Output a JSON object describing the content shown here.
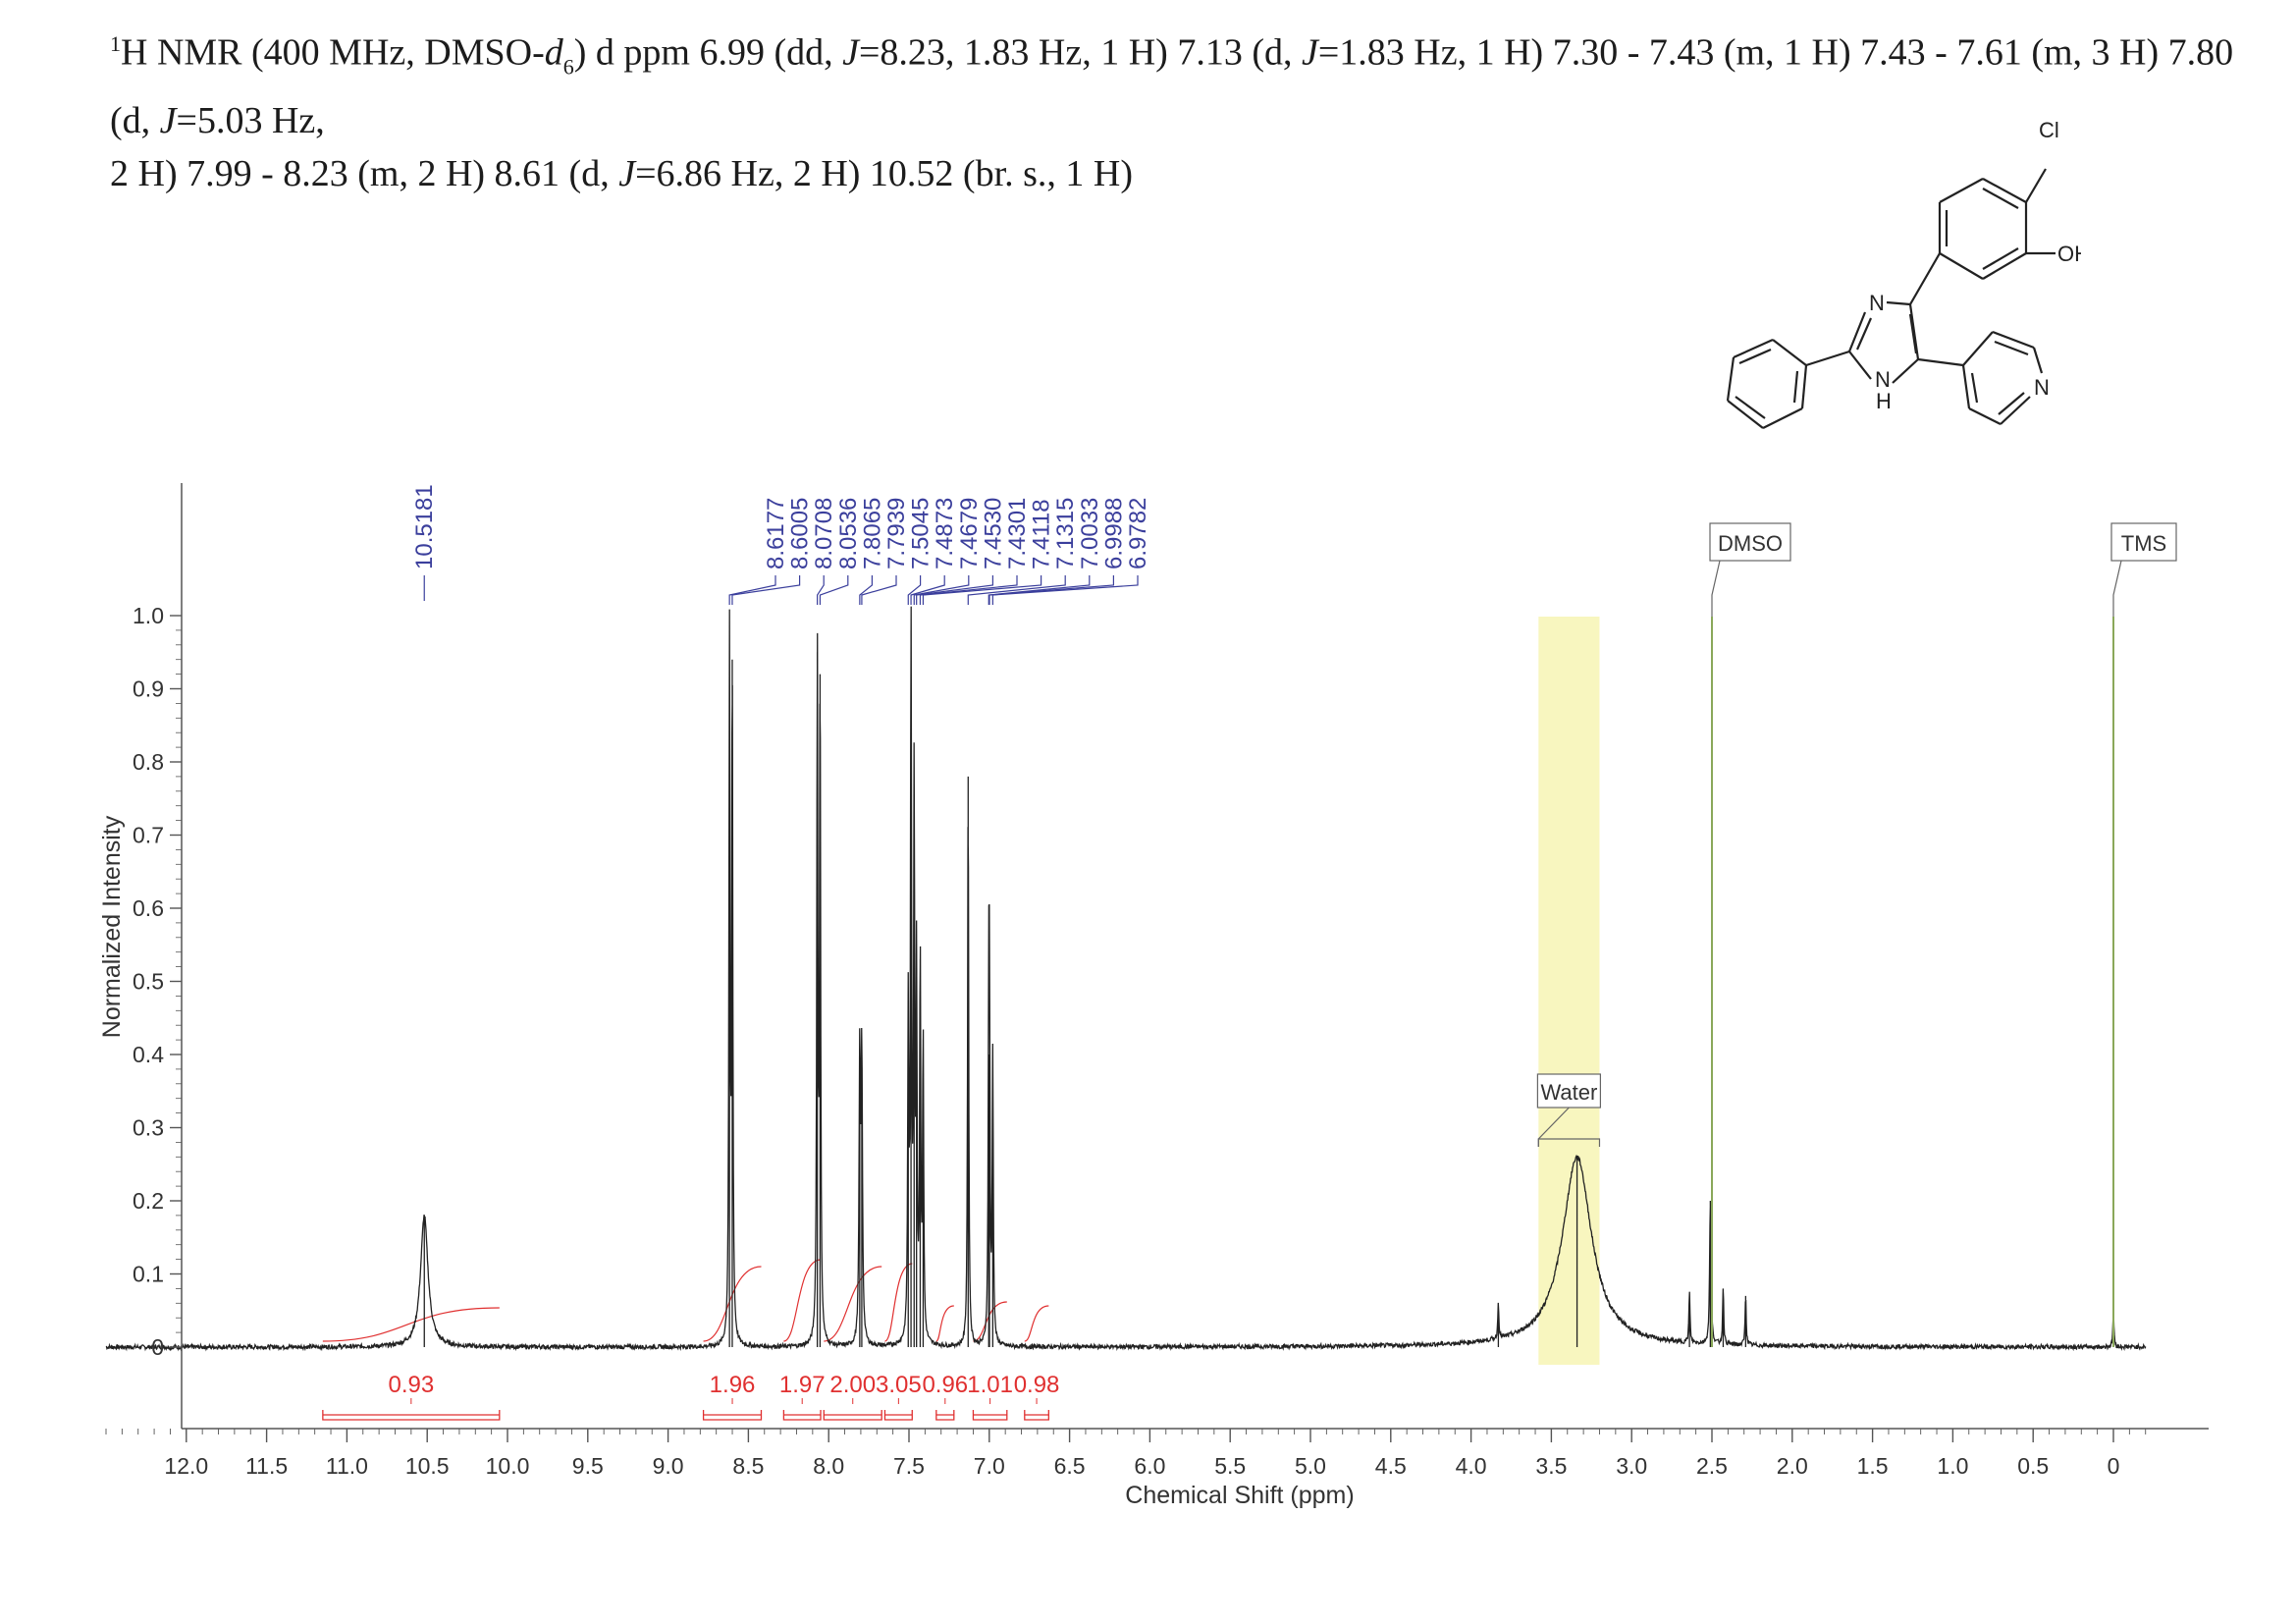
{
  "header": {
    "nucleus_mass": "1",
    "line1_a": "H NMR (400 MHz, DMSO-",
    "solvent_italic": "d",
    "solvent_sub": "6",
    "line1_b": ") d ppm 6.99 (dd, ",
    "j_symbol": "J",
    "line1_c": "=8.23, 1.83 Hz, 1 H) 7.13 (d, ",
    "line1_d": "=1.83 Hz, 1 H) 7.30 - 7.43 (m, 1 H) 7.43 - 7.61 (m, 3 H) 7.80 (d, ",
    "line1_e": "=5.03 Hz,",
    "line2_a": "2 H) 7.99 - 8.23 (m, 2 H) 8.61 (d, ",
    "line2_b": "=6.86 Hz, 2 H) 10.52 (br. s., 1 H)"
  },
  "structure": {
    "substituent_cl": "Cl",
    "substituent_oh": "OH",
    "atom_n_imidazole": "N",
    "atom_nh_n": "N",
    "atom_nh_h": "H",
    "atom_n_pyridine": "N"
  },
  "colors": {
    "spectrum": "#222222",
    "peak_labels": "#3b3f9c",
    "integration": "#e03030",
    "axis": "#555555",
    "highlight": "#f8f6bf"
  },
  "chart_data": {
    "type": "line",
    "xlabel": "Chemical Shift (ppm)",
    "ylabel": "Normalized Intensity",
    "xlim": [
      12.5,
      -0.2
    ],
    "x_reversed": true,
    "ylim": [
      0,
      1.0
    ],
    "x_ticks": [
      "12.0",
      "11.5",
      "11.0",
      "10.5",
      "10.0",
      "9.5",
      "9.0",
      "8.5",
      "8.0",
      "7.5",
      "7.0",
      "6.5",
      "6.0",
      "5.5",
      "5.0",
      "4.5",
      "4.0",
      "3.5",
      "3.0",
      "2.5",
      "2.0",
      "1.5",
      "1.0",
      "0.5",
      "0"
    ],
    "y_ticks": [
      "0",
      "0.1",
      "0.2",
      "0.3",
      "0.4",
      "0.5",
      "0.6",
      "0.7",
      "0.8",
      "0.9",
      "1.0"
    ],
    "peak_labels": [
      "10.5181",
      "8.6177",
      "8.6005",
      "8.0708",
      "8.0536",
      "7.8065",
      "7.7939",
      "7.5045",
      "7.4873",
      "7.4679",
      "7.4530",
      "7.4301",
      "7.4118",
      "7.1315",
      "7.0033",
      "6.9988",
      "6.9782"
    ],
    "peaks": [
      {
        "shift": 10.518,
        "height": 0.18,
        "width": 0.028
      },
      {
        "shift": 8.6177,
        "height": 0.96,
        "width": 0.004
      },
      {
        "shift": 8.6005,
        "height": 0.94,
        "width": 0.004
      },
      {
        "shift": 8.0708,
        "height": 0.95,
        "width": 0.004
      },
      {
        "shift": 8.0536,
        "height": 0.92,
        "width": 0.004
      },
      {
        "shift": 7.8065,
        "height": 0.39,
        "width": 0.005
      },
      {
        "shift": 7.7939,
        "height": 0.39,
        "width": 0.005
      },
      {
        "shift": 7.5045,
        "height": 0.45,
        "width": 0.004
      },
      {
        "shift": 7.4873,
        "height": 0.98,
        "width": 0.004
      },
      {
        "shift": 7.4679,
        "height": 0.75,
        "width": 0.004
      },
      {
        "shift": 7.453,
        "height": 0.5,
        "width": 0.004
      },
      {
        "shift": 7.4301,
        "height": 0.53,
        "width": 0.004
      },
      {
        "shift": 7.4118,
        "height": 0.42,
        "width": 0.004
      },
      {
        "shift": 7.1315,
        "height": 0.78,
        "width": 0.004
      },
      {
        "shift": 7.0033,
        "height": 0.4,
        "width": 0.004
      },
      {
        "shift": 6.9988,
        "height": 0.39,
        "width": 0.004
      },
      {
        "shift": 6.9782,
        "height": 0.39,
        "width": 0.004
      },
      {
        "shift": 3.83,
        "height": 0.05,
        "width": 0.004
      },
      {
        "shift": 3.34,
        "height": 0.26,
        "width": 0.11
      },
      {
        "shift": 2.64,
        "height": 0.07,
        "width": 0.004
      },
      {
        "shift": 2.51,
        "height": 0.2,
        "width": 0.005
      },
      {
        "shift": 2.43,
        "height": 0.08,
        "width": 0.004
      },
      {
        "shift": 2.29,
        "height": 0.07,
        "width": 0.004
      },
      {
        "shift": 0.0,
        "height": 0.05,
        "width": 0.004
      }
    ],
    "integrals": [
      {
        "label": "0.93",
        "from": 11.15,
        "to": 10.05
      },
      {
        "label": "1.96",
        "from": 8.78,
        "to": 8.42
      },
      {
        "label": "1.97",
        "from": 8.28,
        "to": 8.05
      },
      {
        "label": "2.00",
        "from": 8.03,
        "to": 7.67
      },
      {
        "label": "3.05",
        "from": 7.65,
        "to": 7.48
      },
      {
        "label": "0.96",
        "from": 7.33,
        "to": 7.22
      },
      {
        "label": "1.01",
        "from": 7.1,
        "to": 6.89
      },
      {
        "label": "0.98",
        "from": 6.78,
        "to": 6.63
      }
    ],
    "annotations": [
      {
        "text": "Water",
        "shift_from": 3.58,
        "shift_to": 3.2
      },
      {
        "text": "DMSO",
        "shift": 2.5
      },
      {
        "text": "TMS",
        "shift": 0.0
      }
    ]
  }
}
